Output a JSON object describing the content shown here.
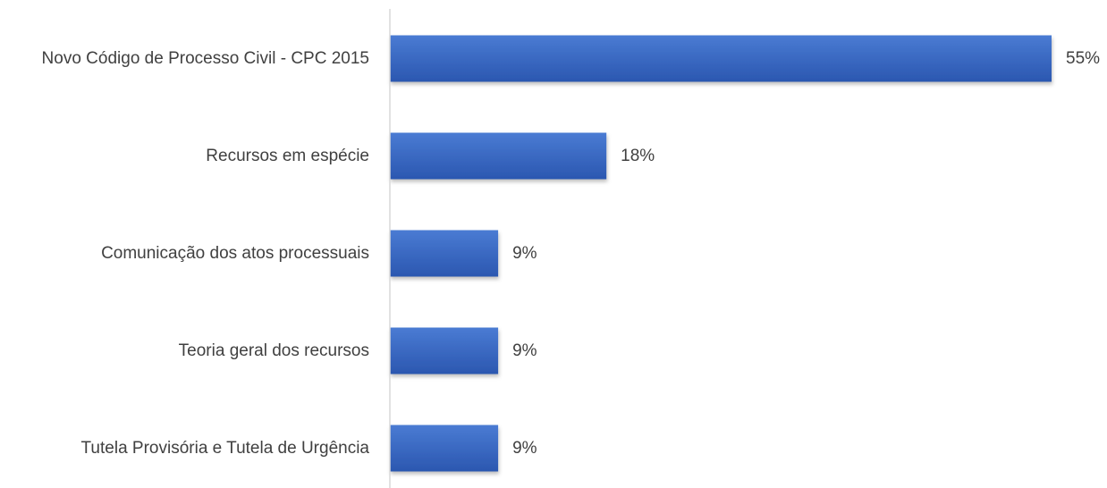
{
  "chart_data": {
    "type": "bar",
    "orientation": "horizontal",
    "categories": [
      "Novo Código de Processo Civil - CPC 2015",
      "Recursos em espécie",
      "Comunicação dos atos processuais",
      "Teoria geral dos recursos",
      "Tutela Provisória e Tutela de Urgência"
    ],
    "values": [
      55,
      18,
      9,
      9,
      9
    ],
    "value_labels": [
      "55%",
      "18%",
      "9%",
      "9%",
      "9%"
    ],
    "unit": "%",
    "xlim": [
      0,
      55
    ],
    "grid": false,
    "legend": "none",
    "colors": {
      "bar_top": "#4A7BD3",
      "bar_bottom": "#2B57B0",
      "axis": "#D9D9D9",
      "text": "#404040"
    }
  }
}
